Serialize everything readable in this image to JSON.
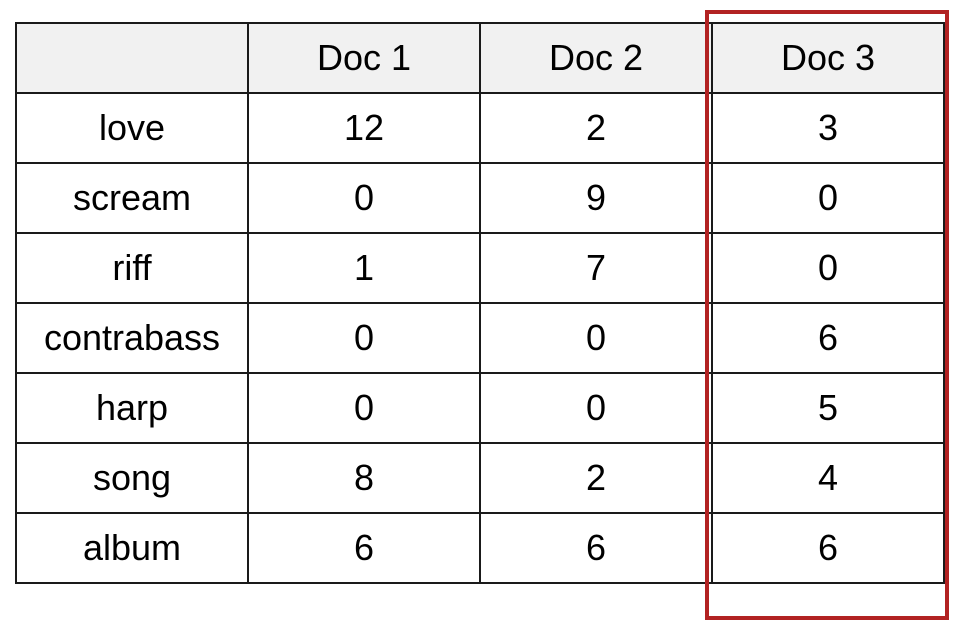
{
  "table": {
    "header": [
      "",
      "Doc 1",
      "Doc 2",
      "Doc 3"
    ],
    "rows": [
      {
        "term": "love",
        "values": [
          "12",
          "2",
          "3"
        ]
      },
      {
        "term": "scream",
        "values": [
          "0",
          "9",
          "0"
        ]
      },
      {
        "term": "riff",
        "values": [
          "1",
          "7",
          "0"
        ]
      },
      {
        "term": "contrabass",
        "values": [
          "0",
          "0",
          "6"
        ]
      },
      {
        "term": "harp",
        "values": [
          "0",
          "0",
          "5"
        ]
      },
      {
        "term": "song",
        "values": [
          "8",
          "2",
          "4"
        ]
      },
      {
        "term": "album",
        "values": [
          "6",
          "6",
          "6"
        ]
      }
    ]
  },
  "highlight": {
    "column": "Doc 3",
    "color": "#b22222"
  }
}
